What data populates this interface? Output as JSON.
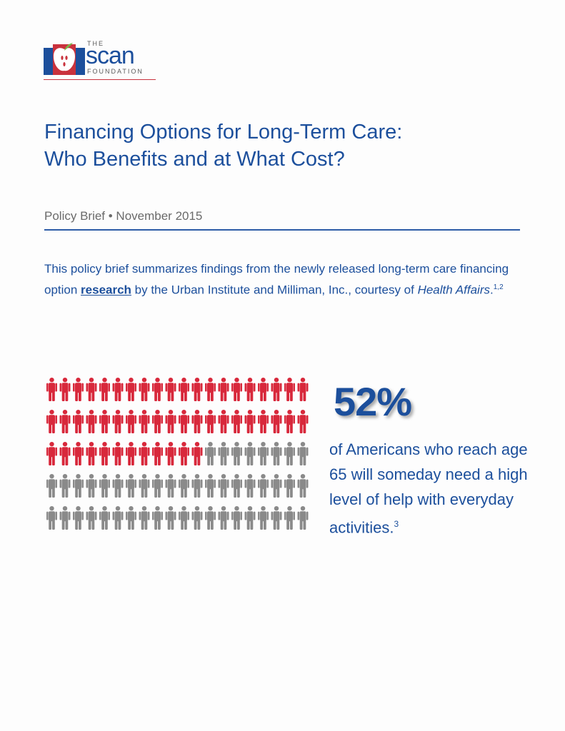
{
  "logo": {
    "the": "THE",
    "scan": "scan",
    "foundation": "FOUNDATION",
    "brand_colors": {
      "blue": "#1c4f9c",
      "red": "#c9323d",
      "green": "#7ab648"
    }
  },
  "title": {
    "line1": "Financing Options for Long-Term Care:",
    "line2": "Who Benefits and at What Cost?"
  },
  "subtitle": "Policy Brief • November 2015",
  "intro": {
    "part1": "This policy brief summarizes findings from the newly released long-term care financing option ",
    "link": "research",
    "part2": " by the Urban Institute and Milliman, Inc., courtesy of ",
    "journal": "Health Affairs",
    "part3": ".",
    "footnote": "1,2"
  },
  "infographic": {
    "total_figures": 100,
    "highlighted_figures": 52,
    "columns": 20,
    "highlight_color": "#d8283b",
    "base_color": "#8a8a8a",
    "stat_value": "52%",
    "caption": "of Americans who reach age 65 will someday need a high level of help with everyday activities.",
    "caption_footnote": "3"
  }
}
